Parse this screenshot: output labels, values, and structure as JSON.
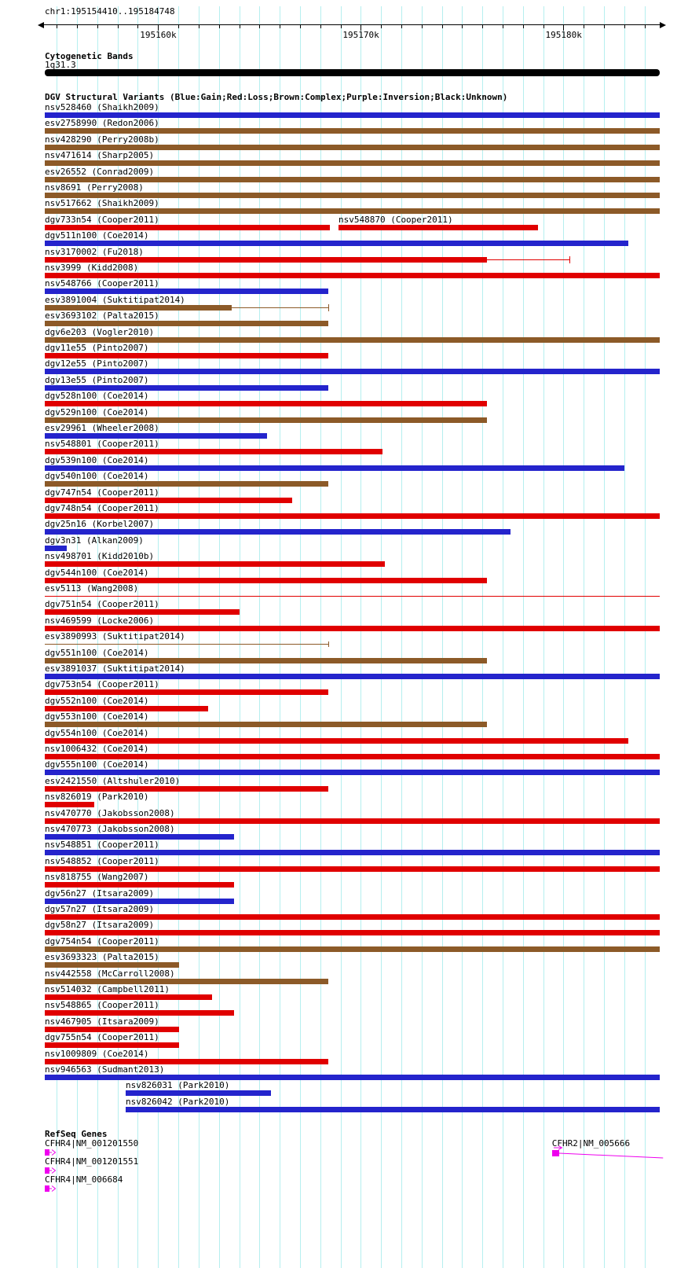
{
  "axis": {
    "title": "chr1:195154410..195184748",
    "chromosome": "chr1",
    "view_start": 195154410,
    "view_end": 195184748,
    "grid_step": 1000,
    "grid_color": "#b5efef",
    "ruler_color": "#000000",
    "major_ticks": [
      {
        "pos": 195160000,
        "label": "195160k"
      },
      {
        "pos": 195170000,
        "label": "195170k"
      },
      {
        "pos": 195180000,
        "label": "195180k"
      }
    ]
  },
  "cytobands": {
    "header": "Cytogenetic Bands",
    "band": {
      "name": "1q31.3",
      "start": 195154410,
      "end": 195184748,
      "color": "#000000"
    }
  },
  "variants": {
    "header": "DGV Structural Variants (Blue:Gain;Red:Loss;Brown:Complex;Purple:Inversion;Black:Unknown)",
    "colors": {
      "gain": "#2424cc",
      "loss": "#e00000",
      "complex": "#8c5a28",
      "inversion": "#800080",
      "unknown": "#000000"
    },
    "rows": [
      {
        "label": "nsv528460 (Shaikh2009)",
        "class": "gain",
        "start": 195154410,
        "end": 195184748
      },
      {
        "label": "esv2758990 (Redon2006)",
        "class": "complex",
        "start": 195154410,
        "end": 195184748
      },
      {
        "label": "nsv428290 (Perry2008b)",
        "class": "complex",
        "start": 195154410,
        "end": 195184748
      },
      {
        "label": "nsv471614 (Sharp2005)",
        "class": "complex",
        "start": 195154410,
        "end": 195184748
      },
      {
        "label": "esv26552 (Conrad2009)",
        "class": "complex",
        "start": 195154410,
        "end": 195184748
      },
      {
        "label": "nsv8691 (Perry2008)",
        "class": "complex",
        "start": 195154410,
        "end": 195184748
      },
      {
        "label": "nsv517662 (Shaikh2009)",
        "class": "complex",
        "start": 195154410,
        "end": 195184748
      },
      {
        "label": "dgv733n54 (Cooper2011)",
        "class": "loss",
        "start": 195154410,
        "end": 195168480,
        "second": {
          "label": "nsv548870 (Cooper2011)",
          "class": "loss",
          "start": 195168900,
          "end": 195178740
        }
      },
      {
        "label": "dgv511n100 (Coe2014)",
        "class": "gain",
        "start": 195154410,
        "end": 195183190
      },
      {
        "label": "nsv3170002 (Fu2018)",
        "class": "loss",
        "start": 195154410,
        "end": 195176220,
        "tail": {
          "end": 195180290,
          "tick": true
        }
      },
      {
        "label": "nsv3999 (Kidd2008)",
        "class": "loss",
        "start": 195154410,
        "end": 195184748
      },
      {
        "label": "nsv548766 (Cooper2011)",
        "class": "gain",
        "start": 195154410,
        "end": 195168400
      },
      {
        "label": "esv3891004 (Suktitipat2014)",
        "class": "complex",
        "start": 195154410,
        "end": 195163630,
        "tail": {
          "end": 195168400,
          "tick": true
        }
      },
      {
        "label": "esv3693102 (Palta2015)",
        "class": "complex",
        "start": 195154410,
        "end": 195168400
      },
      {
        "label": "dgv6e203 (Vogler2010)",
        "class": "complex",
        "start": 195154410,
        "end": 195184748
      },
      {
        "label": "dgv11e55 (Pinto2007)",
        "class": "loss",
        "start": 195154410,
        "end": 195168400
      },
      {
        "label": "dgv12e55 (Pinto2007)",
        "class": "gain",
        "start": 195154410,
        "end": 195184748
      },
      {
        "label": "dgv13e55 (Pinto2007)",
        "class": "gain",
        "start": 195154410,
        "end": 195168400
      },
      {
        "label": "dgv528n100 (Coe2014)",
        "class": "loss",
        "start": 195154410,
        "end": 195176220
      },
      {
        "label": "dgv529n100 (Coe2014)",
        "class": "complex",
        "start": 195154410,
        "end": 195176220
      },
      {
        "label": "esv29961 (Wheeler2008)",
        "class": "gain",
        "start": 195154410,
        "end": 195165370
      },
      {
        "label": "nsv548801 (Cooper2011)",
        "class": "loss",
        "start": 195154410,
        "end": 195171060
      },
      {
        "label": "dgv539n100 (Coe2014)",
        "class": "gain",
        "start": 195154410,
        "end": 195183000
      },
      {
        "label": "dgv540n100 (Coe2014)",
        "class": "complex",
        "start": 195154410,
        "end": 195168400
      },
      {
        "label": "dgv747n54 (Cooper2011)",
        "class": "loss",
        "start": 195154410,
        "end": 195166610
      },
      {
        "label": "dgv748n54 (Cooper2011)",
        "class": "loss",
        "start": 195154410,
        "end": 195184748
      },
      {
        "label": "dgv25n16 (Korbel2007)",
        "class": "gain",
        "start": 195154410,
        "end": 195177380
      },
      {
        "label": "dgv3n31 (Alkan2009)",
        "class": "gain",
        "start": 195154410,
        "end": 195155490
      },
      {
        "label": "nsv498701 (Kidd2010b)",
        "class": "loss",
        "start": 195154410,
        "end": 195171180
      },
      {
        "label": "dgv544n100 (Coe2014)",
        "class": "loss",
        "start": 195154410,
        "end": 195176220
      },
      {
        "label": "esv5113 (Wang2008)",
        "class": "loss",
        "start": 195154410,
        "end": 195184748,
        "style": "thin"
      },
      {
        "label": "dgv751n54 (Cooper2011)",
        "class": "loss",
        "start": 195154410,
        "end": 195164020
      },
      {
        "label": "nsv469599 (Locke2006)",
        "class": "loss",
        "start": 195154410,
        "end": 195184748
      },
      {
        "label": "esv3890993 (Suktitipat2014)",
        "class": "complex",
        "start": 195154410,
        "end": 195168400,
        "style": "thin",
        "tick_end": true
      },
      {
        "label": "dgv551n100 (Coe2014)",
        "class": "complex",
        "start": 195154410,
        "end": 195176220
      },
      {
        "label": "esv3891037 (Suktitipat2014)",
        "class": "gain",
        "start": 195154410,
        "end": 195184748
      },
      {
        "label": "dgv753n54 (Cooper2011)",
        "class": "loss",
        "start": 195154410,
        "end": 195168400
      },
      {
        "label": "dgv552n100 (Coe2014)",
        "class": "loss",
        "start": 195154410,
        "end": 195162470
      },
      {
        "label": "dgv553n100 (Coe2014)",
        "class": "complex",
        "start": 195154410,
        "end": 195176220
      },
      {
        "label": "dgv554n100 (Coe2014)",
        "class": "loss",
        "start": 195154410,
        "end": 195183190
      },
      {
        "label": "nsv1006432 (Coe2014)",
        "class": "loss",
        "start": 195154410,
        "end": 195184748
      },
      {
        "label": "dgv555n100 (Coe2014)",
        "class": "gain",
        "start": 195154410,
        "end": 195184748
      },
      {
        "label": "esv2421550 (Altshuler2010)",
        "class": "loss",
        "start": 195154410,
        "end": 195168400
      },
      {
        "label": "nsv826019 (Park2010)",
        "class": "loss",
        "start": 195154410,
        "end": 195156850
      },
      {
        "label": "nsv470770 (Jakobsson2008)",
        "class": "loss",
        "start": 195154410,
        "end": 195184748
      },
      {
        "label": "nsv470773 (Jakobsson2008)",
        "class": "gain",
        "start": 195154410,
        "end": 195163750
      },
      {
        "label": "nsv548851 (Cooper2011)",
        "class": "gain",
        "start": 195154410,
        "end": 195184748
      },
      {
        "label": "nsv548852 (Cooper2011)",
        "class": "loss",
        "start": 195154410,
        "end": 195184748
      },
      {
        "label": "nsv818755 (Wang2007)",
        "class": "loss",
        "start": 195154410,
        "end": 195163750
      },
      {
        "label": "dgv56n27 (Itsara2009)",
        "class": "gain",
        "start": 195154410,
        "end": 195163750
      },
      {
        "label": "dgv57n27 (Itsara2009)",
        "class": "loss",
        "start": 195154410,
        "end": 195184748
      },
      {
        "label": "dgv58n27 (Itsara2009)",
        "class": "loss",
        "start": 195154410,
        "end": 195184748
      },
      {
        "label": "dgv754n54 (Cooper2011)",
        "class": "complex",
        "start": 195154410,
        "end": 195184748
      },
      {
        "label": "esv3693323 (Palta2015)",
        "class": "complex",
        "start": 195154410,
        "end": 195161030
      },
      {
        "label": "nsv442558 (McCarroll2008)",
        "class": "complex",
        "start": 195154410,
        "end": 195168400
      },
      {
        "label": "nsv514032 (Campbell2011)",
        "class": "loss",
        "start": 195154410,
        "end": 195162660
      },
      {
        "label": "nsv548865 (Cooper2011)",
        "class": "loss",
        "start": 195154410,
        "end": 195163750
      },
      {
        "label": "nsv467905 (Itsara2009)",
        "class": "loss",
        "start": 195154410,
        "end": 195161030
      },
      {
        "label": "dgv755n54 (Cooper2011)",
        "class": "loss",
        "start": 195154410,
        "end": 195161030
      },
      {
        "label": "nsv1009809 (Coe2014)",
        "class": "loss",
        "start": 195154410,
        "end": 195168400
      },
      {
        "label": "nsv946563 (Sudmant2013)",
        "class": "gain",
        "start": 195154410,
        "end": 195184748
      },
      {
        "label": "nsv826031 (Park2010)",
        "class": "gain",
        "start": 195158400,
        "end": 195165570
      },
      {
        "label": "nsv826042 (Park2010)",
        "class": "gain",
        "start": 195158400,
        "end": 195184748
      }
    ]
  },
  "genes": {
    "header": "RefSeq Genes",
    "color": "#ee00ee",
    "rows": [
      {
        "items": [
          {
            "label": "CFHR4|NM_001201550",
            "start": 195154410,
            "glyph": "exon-arrow"
          },
          {
            "label": "CFHR2|NM_005666",
            "start": 195179430,
            "line_end": 195184748,
            "glyph": "exon-arrow-line"
          }
        ]
      },
      {
        "items": [
          {
            "label": "CFHR4|NM_001201551",
            "start": 195154410,
            "glyph": "exon-arrow"
          }
        ]
      },
      {
        "items": [
          {
            "label": "CFHR4|NM_006684",
            "start": 195154410,
            "glyph": "exon-arrow"
          }
        ]
      }
    ]
  }
}
